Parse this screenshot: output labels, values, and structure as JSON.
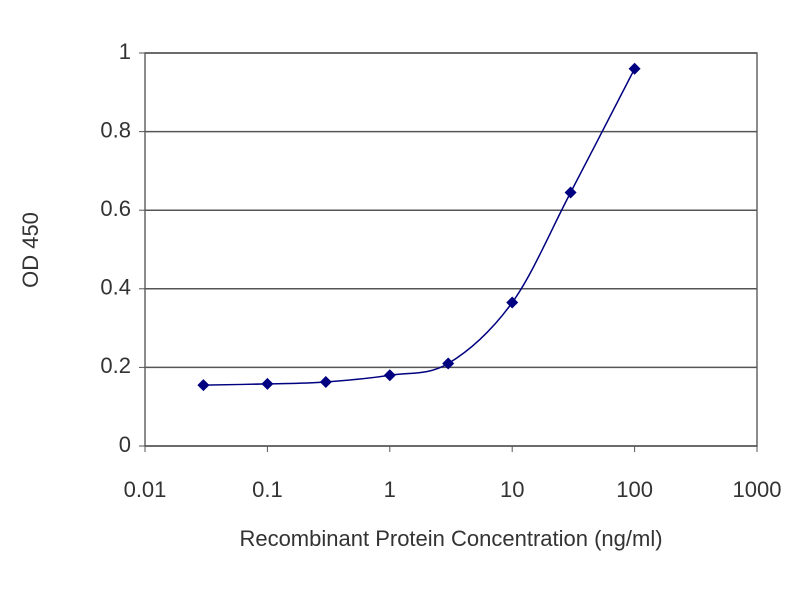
{
  "chart_data": {
    "type": "line",
    "x_label": "Recombinant Protein Concentration (ng/ml)",
    "y_label": "OD 450",
    "x": [
      0.03,
      0.1,
      0.3,
      1,
      3,
      10,
      30,
      100
    ],
    "series": [
      {
        "color": "#000080",
        "values": [
          0.155,
          0.158,
          0.163,
          0.18,
          0.21,
          0.365,
          0.645,
          0.96
        ]
      }
    ],
    "xlog": true,
    "xlim": [
      0.01,
      1000
    ],
    "xticks": [
      0.01,
      0.1,
      1,
      10,
      100,
      1000
    ],
    "ylim": [
      0,
      1
    ],
    "yticks": [
      0,
      0.2,
      0.4,
      0.6,
      0.8,
      1
    ],
    "grid": true
  }
}
